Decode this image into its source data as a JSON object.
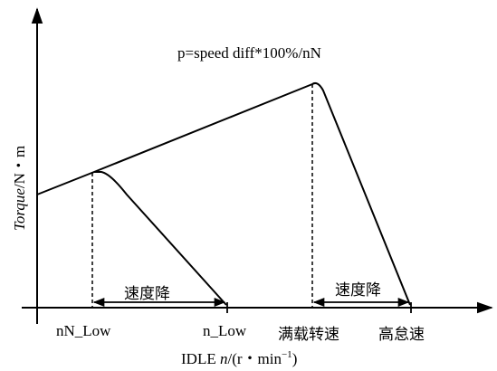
{
  "formula": "p=speed diff*100%/nN",
  "y_axis": {
    "label_italic": "Torque",
    "label_unit": "/N・m"
  },
  "x_axis": {
    "label_prefix": "IDLE ",
    "label_var": "n",
    "label_unit": "/(r・min",
    "label_exp": "−1",
    "label_close": ")"
  },
  "ticks": {
    "nN_low": "nN_Low",
    "n_low": "n_Low",
    "full_load_speed": "满载转速",
    "high_idle_speed": "高怠速"
  },
  "annotations": {
    "droop_left": "速度降",
    "droop_right": "速度降"
  },
  "colors": {
    "line": "#000000",
    "background": "#ffffff"
  }
}
